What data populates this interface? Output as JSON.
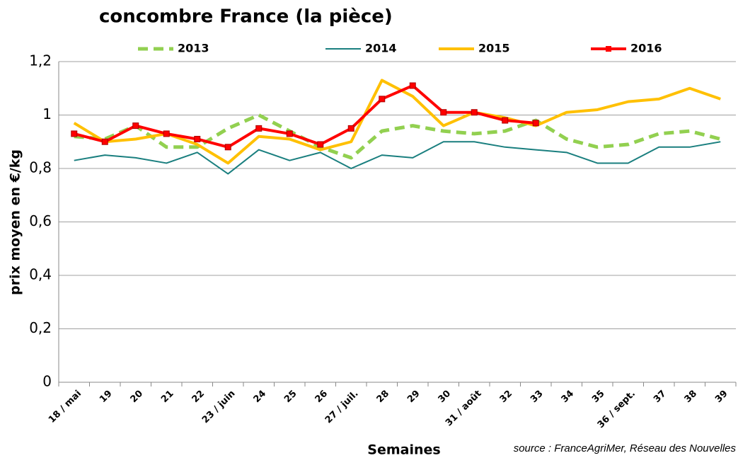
{
  "chart_data": {
    "type": "line",
    "title": "concombre France (la pièce)",
    "x_label": "Semaines",
    "y_label": "prix moyen en €/kg",
    "source": "source : FranceAgriMer, Réseau des Nouvelles",
    "categories": [
      "18 / mai",
      "19",
      "20",
      "21",
      "22",
      "23 / juin",
      "24",
      "25",
      "26",
      "27 / juil.",
      "28",
      "29",
      "30",
      "31 / août",
      "32",
      "33",
      "34",
      "35",
      "36 / sept.",
      "37",
      "38",
      "39"
    ],
    "series": [
      {
        "name": "2013",
        "color": "#92d050",
        "style": "dashed",
        "width": 5,
        "values": [
          0.92,
          0.91,
          0.96,
          0.88,
          0.88,
          0.95,
          1.0,
          0.94,
          0.88,
          0.84,
          0.94,
          0.96,
          0.94,
          0.93,
          0.94,
          0.98,
          0.91,
          0.88,
          0.89,
          0.93,
          0.94,
          0.91
        ]
      },
      {
        "name": "2014",
        "color": "#1a7f7f",
        "style": "solid",
        "width": 2,
        "values": [
          0.83,
          0.85,
          0.84,
          0.82,
          0.86,
          0.78,
          0.87,
          0.83,
          0.86,
          0.8,
          0.85,
          0.84,
          0.9,
          0.9,
          0.88,
          0.87,
          0.86,
          0.82,
          0.82,
          0.88,
          0.88,
          0.9
        ]
      },
      {
        "name": "2015",
        "color": "#ffc000",
        "style": "solid",
        "width": 4,
        "values": [
          0.97,
          0.9,
          0.91,
          0.93,
          0.89,
          0.82,
          0.92,
          0.91,
          0.87,
          0.9,
          1.13,
          1.07,
          0.96,
          1.01,
          0.99,
          0.96,
          1.01,
          1.02,
          1.05,
          1.06,
          1.1,
          1.06
        ]
      },
      {
        "name": "2016",
        "color": "#ff0000",
        "style": "solid",
        "width": 4,
        "marker": "square",
        "values": [
          0.93,
          0.9,
          0.96,
          0.93,
          0.91,
          0.88,
          0.95,
          0.93,
          0.89,
          0.95,
          1.06,
          1.11,
          1.01,
          1.01,
          0.98,
          0.97,
          null,
          null,
          null,
          null,
          null,
          null
        ]
      }
    ],
    "ylim": [
      0,
      1.2
    ],
    "yticks": [
      0,
      {
        "value": 0.2,
        "label": "0,2"
      },
      {
        "value": 0.4,
        "label": "0,4"
      },
      {
        "value": 0.6,
        "label": "0,6"
      },
      {
        "value": 0.8,
        "label": "0,8"
      },
      1,
      {
        "value": 1.2,
        "label": "1,2"
      }
    ],
    "grid": true,
    "legend": "top"
  }
}
